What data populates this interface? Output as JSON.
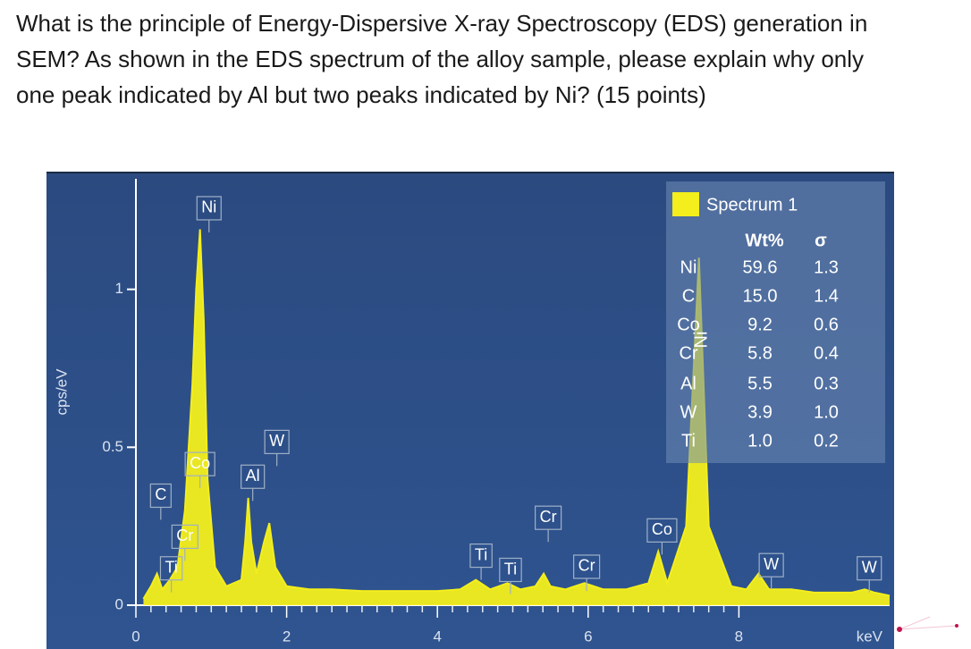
{
  "question": [
    "What is the principle of Energy-Dispersive X-ray Spectroscopy (EDS) generation in",
    "SEM? As shown in the EDS spectrum of the alloy sample, please explain why only",
    "one peak indicated by Al but two peaks indicated by Ni? (15 points)"
  ],
  "chart_data": {
    "type": "area",
    "xlabel": "keV",
    "ylabel": "cps/eV",
    "xlim": [
      0,
      10
    ],
    "xticks": [
      0,
      2,
      4,
      6,
      8
    ],
    "ylim": [
      0,
      1.35
    ],
    "yticks": [
      0,
      0.5,
      1
    ],
    "series": [
      {
        "name": "Spectrum 1",
        "color": "#f3ee1c",
        "x": [
          0.1,
          0.2,
          0.28,
          0.35,
          0.45,
          0.55,
          0.65,
          0.75,
          0.8,
          0.85,
          0.9,
          0.95,
          1.05,
          1.2,
          1.4,
          1.45,
          1.49,
          1.53,
          1.6,
          1.7,
          1.77,
          1.85,
          2.0,
          2.3,
          2.6,
          3.0,
          3.5,
          4.0,
          4.3,
          4.51,
          4.7,
          4.93,
          5.1,
          5.3,
          5.41,
          5.5,
          5.7,
          5.95,
          6.2,
          6.5,
          6.8,
          6.93,
          7.05,
          7.3,
          7.47,
          7.6,
          7.9,
          8.1,
          8.26,
          8.4,
          8.7,
          9.0,
          9.5,
          9.67,
          9.8,
          10.0
        ],
        "values": [
          0.02,
          0.06,
          0.1,
          0.05,
          0.08,
          0.12,
          0.3,
          0.7,
          1.0,
          1.19,
          0.9,
          0.4,
          0.12,
          0.06,
          0.08,
          0.2,
          0.34,
          0.2,
          0.1,
          0.2,
          0.26,
          0.12,
          0.06,
          0.05,
          0.05,
          0.045,
          0.045,
          0.045,
          0.05,
          0.08,
          0.05,
          0.07,
          0.05,
          0.06,
          0.1,
          0.06,
          0.05,
          0.07,
          0.05,
          0.05,
          0.07,
          0.17,
          0.07,
          0.25,
          1.1,
          0.25,
          0.06,
          0.05,
          0.1,
          0.05,
          0.05,
          0.04,
          0.04,
          0.05,
          0.04,
          0.03
        ]
      }
    ],
    "annotations": [
      {
        "text": "Ni",
        "x": 0.97,
        "y": 1.22
      },
      {
        "text": "C",
        "x": 0.33,
        "y": 0.31
      },
      {
        "text": "Co",
        "x": 0.85,
        "y": 0.41
      },
      {
        "text": "Cr",
        "x": 0.65,
        "y": 0.18
      },
      {
        "text": "Ti",
        "x": 0.47,
        "y": 0.08
      },
      {
        "text": "Al",
        "x": 1.55,
        "y": 0.37
      },
      {
        "text": "W",
        "x": 1.87,
        "y": 0.48
      },
      {
        "text": "Ti",
        "x": 4.58,
        "y": 0.12
      },
      {
        "text": "Ti",
        "x": 4.97,
        "y": 0.075
      },
      {
        "text": "Cr",
        "x": 5.47,
        "y": 0.24
      },
      {
        "text": "Cr",
        "x": 5.98,
        "y": 0.085
      },
      {
        "text": "Co",
        "x": 6.98,
        "y": 0.2
      },
      {
        "text": "W",
        "x": 8.43,
        "y": 0.09
      },
      {
        "text": "W",
        "x": 9.73,
        "y": 0.08
      }
    ],
    "table": {
      "header": [
        "Wt%",
        "σ"
      ],
      "rows": [
        [
          "Ni",
          "59.6",
          "1.3"
        ],
        [
          "C",
          "15.0",
          "1.4"
        ],
        [
          "Co",
          "9.2",
          "0.6"
        ],
        [
          "Cr",
          "5.8",
          "0.4"
        ],
        [
          "Al",
          "5.5",
          "0.3"
        ],
        [
          "W",
          "3.9",
          "1.0"
        ],
        [
          "Ti",
          "1.0",
          "0.2"
        ]
      ],
      "overlap_label": "Ni"
    }
  }
}
